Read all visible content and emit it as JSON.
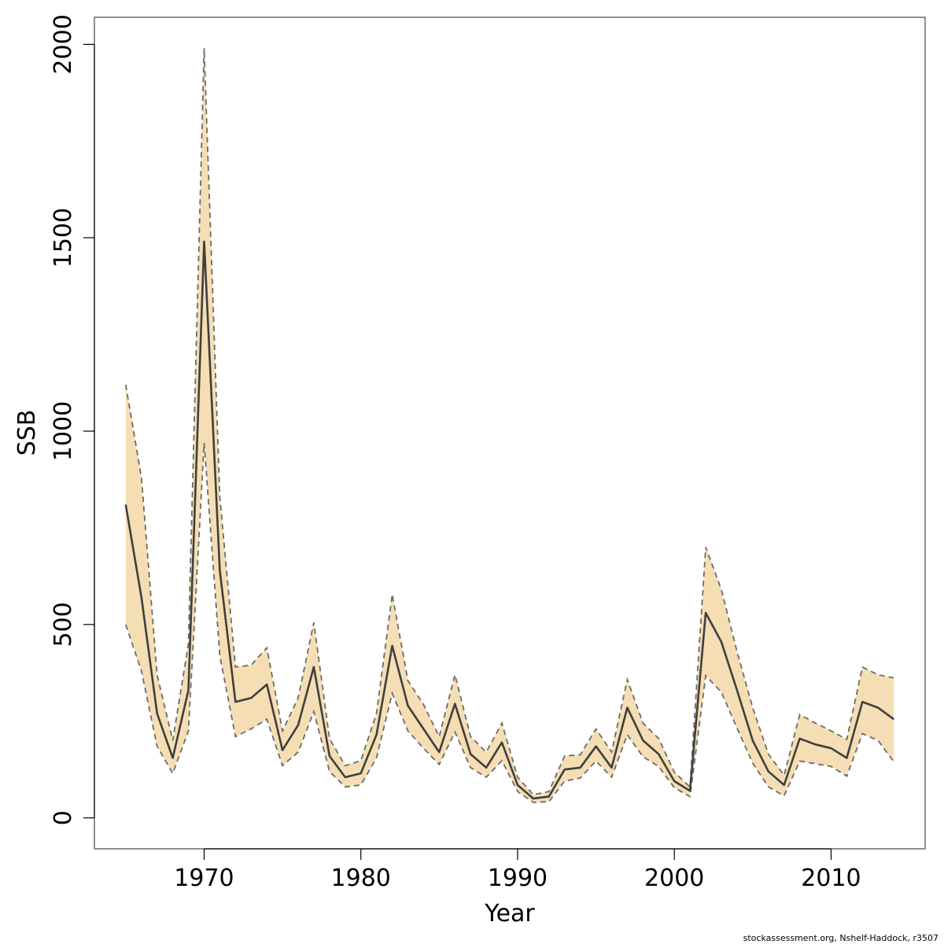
{
  "chart_data": {
    "type": "area",
    "xlabel": "Year",
    "ylabel": "SSB",
    "xlim": [
      1963,
      2016
    ],
    "ylim": [
      -80,
      2070
    ],
    "xticks": [
      1970,
      1980,
      1990,
      2000,
      2010
    ],
    "yticks": [
      0,
      500,
      1000,
      1500,
      2000
    ],
    "grid": false,
    "years": [
      1965,
      1966,
      1967,
      1968,
      1969,
      1970,
      1971,
      1972,
      1973,
      1974,
      1975,
      1976,
      1977,
      1978,
      1979,
      1980,
      1981,
      1982,
      1983,
      1984,
      1985,
      1986,
      1987,
      1988,
      1989,
      1990,
      1991,
      1992,
      1993,
      1994,
      1995,
      1996,
      1997,
      1998,
      1999,
      2000,
      2001,
      2002,
      2003,
      2004,
      2005,
      2006,
      2007,
      2008,
      2009,
      2010,
      2011,
      2012,
      2013,
      2014
    ],
    "series": [
      {
        "values": [
          810,
          570,
          270,
          155,
          330,
          1490,
          640,
          300,
          310,
          345,
          175,
          240,
          390,
          160,
          105,
          115,
          215,
          445,
          290,
          230,
          170,
          295,
          165,
          130,
          195,
          85,
          50,
          55,
          125,
          130,
          185,
          130,
          285,
          200,
          165,
          95,
          70,
          530,
          455,
          330,
          200,
          120,
          85,
          205,
          190,
          180,
          155,
          300,
          285,
          255
        ]
      },
      {
        "role": "upper",
        "values": [
          1120,
          880,
          370,
          200,
          450,
          1990,
          830,
          390,
          395,
          440,
          225,
          310,
          505,
          205,
          135,
          148,
          270,
          578,
          355,
          293,
          210,
          370,
          210,
          170,
          245,
          105,
          60,
          68,
          160,
          163,
          230,
          170,
          358,
          245,
          205,
          118,
          80,
          700,
          590,
          430,
          285,
          165,
          110,
          267,
          245,
          225,
          203,
          390,
          370,
          362
        ]
      },
      {
        "role": "lower",
        "values": [
          500,
          380,
          185,
          115,
          225,
          970,
          420,
          210,
          230,
          255,
          135,
          170,
          275,
          120,
          80,
          85,
          155,
          322,
          225,
          180,
          138,
          222,
          130,
          105,
          148,
          68,
          40,
          42,
          95,
          103,
          147,
          105,
          215,
          158,
          133,
          78,
          55,
          368,
          325,
          232,
          142,
          80,
          57,
          147,
          140,
          133,
          108,
          218,
          200,
          145
        ]
      }
    ],
    "colors": {
      "band": "#F5DEB3",
      "band_edge": "#6b6b6b",
      "line": "#3f3f3f",
      "frame": "#555555"
    }
  },
  "credit": "stockassessment.org, Nshelf-Haddock, r3507"
}
